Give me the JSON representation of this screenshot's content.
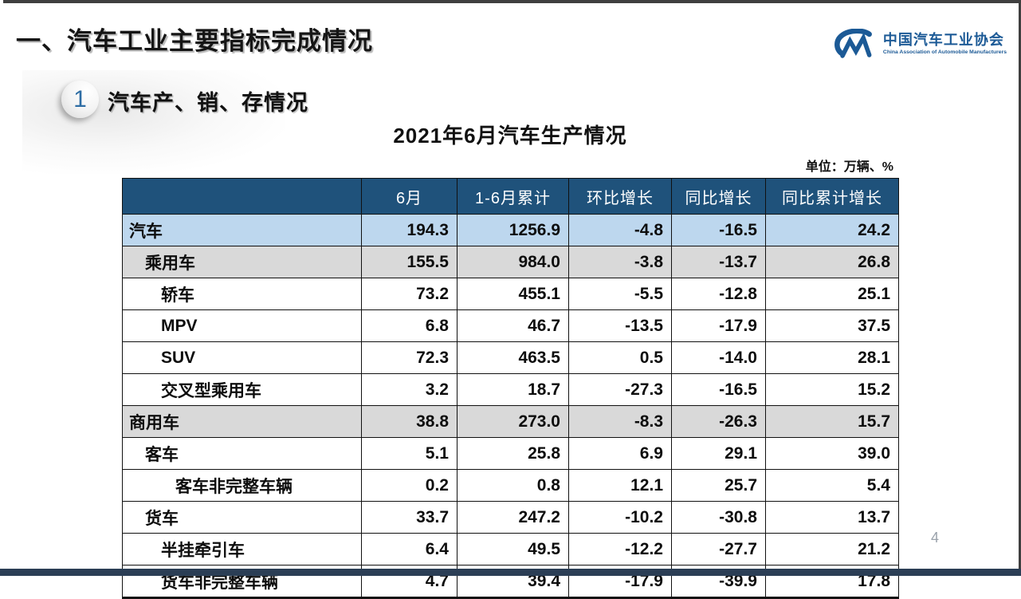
{
  "page": {
    "title": "一、汽车工业主要指标完成情况",
    "page_number": "4"
  },
  "logo": {
    "name_zh": "中国汽车工业协会",
    "name_en": "China Association of Automobile Manufacturers"
  },
  "section": {
    "number": "1",
    "title": "汽车产、销、存情况"
  },
  "table": {
    "title": "2021年6月汽车生产情况",
    "unit_note": "单位：万辆、%",
    "columns": [
      "",
      "6月",
      "1-6月累计",
      "环比增长",
      "同比增长",
      "同比累计增长"
    ],
    "rows": [
      {
        "label": "汽车",
        "level": 0,
        "style": "total",
        "values": [
          "194.3",
          "1256.9",
          "-4.8",
          "-16.5",
          "24.2"
        ]
      },
      {
        "label": "乘用车",
        "level": 1,
        "style": "subtotal",
        "values": [
          "155.5",
          "984.0",
          "-3.8",
          "-13.7",
          "26.8"
        ]
      },
      {
        "label": "轿车",
        "level": 2,
        "style": "plain",
        "values": [
          "73.2",
          "455.1",
          "-5.5",
          "-12.8",
          "25.1"
        ]
      },
      {
        "label": "MPV",
        "level": 2,
        "style": "plain",
        "values": [
          "6.8",
          "46.7",
          "-13.5",
          "-17.9",
          "37.5"
        ]
      },
      {
        "label": "SUV",
        "level": 2,
        "style": "plain",
        "values": [
          "72.3",
          "463.5",
          "0.5",
          "-14.0",
          "28.1"
        ]
      },
      {
        "label": "交叉型乘用车",
        "level": 2,
        "style": "plain",
        "values": [
          "3.2",
          "18.7",
          "-27.3",
          "-16.5",
          "15.2"
        ]
      },
      {
        "label": "商用车",
        "level": 0,
        "style": "subtotal",
        "values": [
          "38.8",
          "273.0",
          "-8.3",
          "-26.3",
          "15.7"
        ]
      },
      {
        "label": "客车",
        "level": 1,
        "style": "plain",
        "values": [
          "5.1",
          "25.8",
          "6.9",
          "29.1",
          "39.0"
        ]
      },
      {
        "label": "客车非完整车辆",
        "level": 3,
        "style": "plain",
        "values": [
          "0.2",
          "0.8",
          "12.1",
          "25.7",
          "5.4"
        ]
      },
      {
        "label": "货车",
        "level": 1,
        "style": "plain",
        "values": [
          "33.7",
          "247.2",
          "-10.2",
          "-30.8",
          "13.7"
        ]
      },
      {
        "label": "半挂牵引车",
        "level": 2,
        "style": "plain",
        "values": [
          "6.4",
          "49.5",
          "-12.2",
          "-27.7",
          "21.2"
        ]
      },
      {
        "label": "货车非完整车辆",
        "level": 2,
        "style": "plain",
        "values": [
          "4.7",
          "39.4",
          "-17.9",
          "-39.9",
          "17.8"
        ]
      }
    ]
  },
  "colors": {
    "header_bg": "#1f527b",
    "row_total_bg": "#bdd7ee",
    "row_subtotal_bg": "#d9d9d9",
    "row_plain_bg": "#ffffff",
    "accent_blue": "#1c5a96",
    "footer_bar": "#2b3e55",
    "frame_edge": "#3f3f3f"
  }
}
